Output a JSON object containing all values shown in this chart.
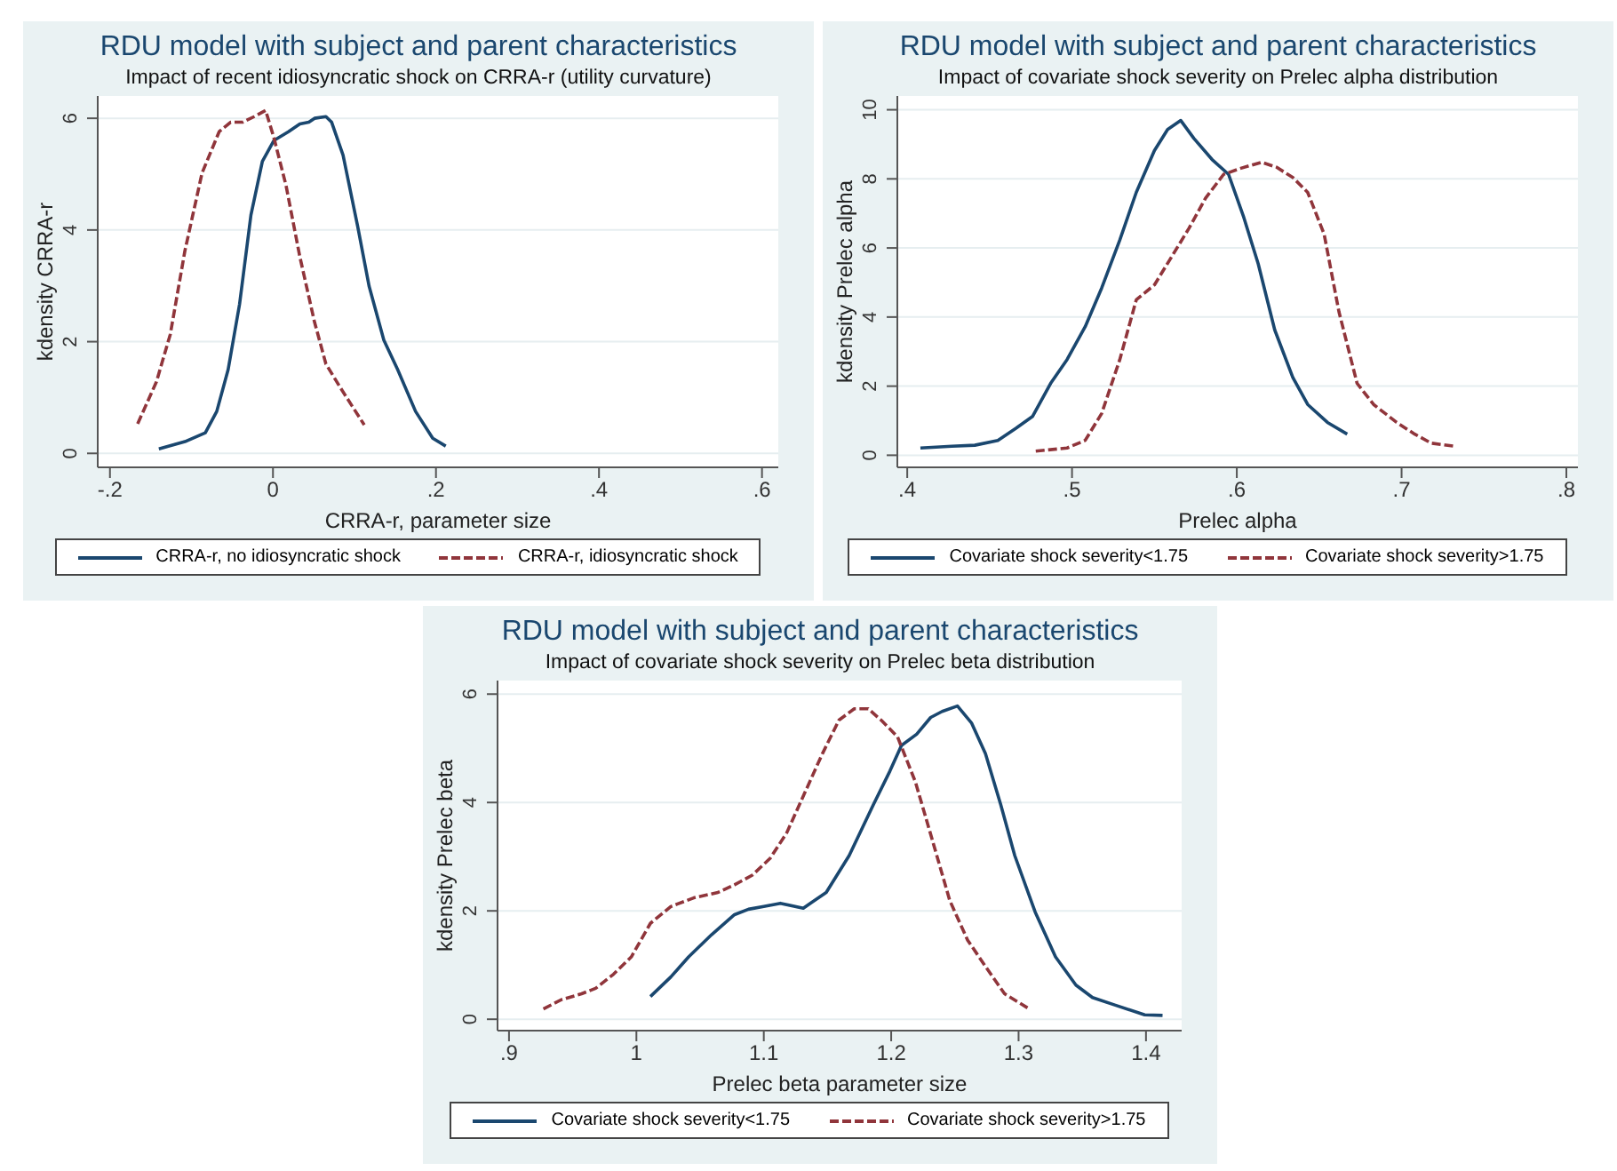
{
  "chart_data": [
    {
      "type": "line",
      "title": "RDU model with subject and parent characteristics",
      "subtitle": "Impact of recent idiosyncratic shock on CRRA-r (utility curvature)",
      "xlabel": "CRRA-r, parameter size",
      "ylabel": "kdensity CRRA-r",
      "xlim": [
        -0.215,
        0.62
      ],
      "xticks": [
        {
          "value": -0.2,
          "label": "-.2"
        },
        0,
        {
          "value": 0.2,
          "label": ".2"
        },
        {
          "value": 0.4,
          "label": ".4"
        },
        {
          "value": 0.6,
          "label": ".6"
        }
      ],
      "ylim": [
        -0.25,
        6.4
      ],
      "yticks": [
        0,
        2,
        4,
        6
      ],
      "grid": "y",
      "legend": "bottom",
      "marker": "none",
      "series": [
        {
          "name": "CRRA-r, no idiosyncratic shock",
          "color": "#1a476f",
          "line_style": "solid",
          "x": [
            -0.14,
            -0.108,
            -0.083,
            -0.069,
            -0.055,
            -0.041,
            -0.027,
            -0.013,
            0.001,
            0.019,
            0.033,
            0.044,
            0.051,
            0.065,
            0.072,
            0.086,
            0.104,
            0.118,
            0.136,
            0.153,
            0.175,
            0.196,
            0.212
          ],
          "values": [
            0.08,
            0.21,
            0.37,
            0.75,
            1.5,
            2.67,
            4.27,
            5.23,
            5.6,
            5.76,
            5.9,
            5.93,
            6.0,
            6.03,
            5.93,
            5.34,
            4.06,
            2.99,
            2.03,
            1.5,
            0.75,
            0.27,
            0.13
          ]
        },
        {
          "name": "CRRA-r, idiosyncratic shock",
          "color": "#90353b",
          "line_style": "dashed",
          "x": [
            -0.166,
            -0.143,
            -0.126,
            -0.108,
            -0.087,
            -0.066,
            -0.052,
            -0.037,
            -0.023,
            -0.009,
            0.001,
            0.016,
            0.033,
            0.051,
            0.065,
            0.083,
            0.097,
            0.112
          ],
          "values": [
            0.53,
            1.28,
            2.13,
            3.63,
            5.02,
            5.76,
            5.93,
            5.93,
            6.03,
            6.14,
            5.66,
            4.8,
            3.52,
            2.35,
            1.6,
            1.17,
            0.85,
            0.51
          ]
        }
      ]
    },
    {
      "type": "line",
      "title": "RDU model with subject and parent characteristics",
      "subtitle": "Impact of covariate shock severity on Prelec alpha distribution",
      "xlabel": "Prelec alpha",
      "ylabel": "kdensity Prelec alpha",
      "xlim": [
        0.394,
        0.807
      ],
      "xticks": [
        {
          "value": 0.4,
          "label": ".4"
        },
        {
          "value": 0.5,
          "label": ".5"
        },
        {
          "value": 0.6,
          "label": ".6"
        },
        {
          "value": 0.7,
          "label": ".7"
        },
        {
          "value": 0.8,
          "label": ".8"
        }
      ],
      "ylim": [
        -0.35,
        10.4
      ],
      "yticks": [
        0,
        2,
        4,
        6,
        8,
        10
      ],
      "grid": "y",
      "legend": "bottom",
      "marker": "none",
      "series": [
        {
          "name": "Covariate shock severity<1.75",
          "color": "#1a476f",
          "line_style": "solid",
          "x": [
            0.408,
            0.427,
            0.441,
            0.455,
            0.466,
            0.476,
            0.487,
            0.497,
            0.508,
            0.518,
            0.529,
            0.539,
            0.55,
            0.558,
            0.566,
            0.574,
            0.585,
            0.595,
            0.604,
            0.613,
            0.623,
            0.634,
            0.643,
            0.655,
            0.667
          ],
          "values": [
            0.21,
            0.26,
            0.29,
            0.43,
            0.78,
            1.12,
            2.08,
            2.77,
            3.72,
            4.84,
            6.23,
            7.61,
            8.82,
            9.43,
            9.69,
            9.17,
            8.56,
            8.13,
            6.92,
            5.54,
            3.63,
            2.25,
            1.47,
            0.95,
            0.61
          ]
        },
        {
          "name": "Covariate shock severity>1.75",
          "color": "#90353b",
          "line_style": "dashed",
          "x": [
            0.478,
            0.497,
            0.508,
            0.518,
            0.529,
            0.539,
            0.55,
            0.56,
            0.571,
            0.581,
            0.592,
            0.602,
            0.615,
            0.624,
            0.634,
            0.643,
            0.653,
            0.662,
            0.673,
            0.683,
            0.697,
            0.708,
            0.718,
            0.732
          ],
          "values": [
            0.12,
            0.21,
            0.43,
            1.21,
            2.77,
            4.5,
            4.93,
            5.71,
            6.57,
            7.44,
            8.13,
            8.3,
            8.48,
            8.34,
            8.04,
            7.61,
            6.4,
            4.15,
            2.08,
            1.47,
            0.95,
            0.61,
            0.35,
            0.26
          ]
        }
      ]
    },
    {
      "type": "line",
      "title": "RDU model with subject and parent characteristics",
      "subtitle": "Impact of covariate shock severity on Prelec beta distribution",
      "xlabel": "Prelec beta parameter size",
      "ylabel": "kdensity Prelec beta",
      "xlim": [
        0.891,
        1.428
      ],
      "xticks": [
        {
          "value": 0.9,
          "label": ".9"
        },
        1,
        1.1,
        1.2,
        1.3,
        1.4
      ],
      "ylim": [
        -0.21,
        6.25
      ],
      "yticks": [
        0,
        2,
        4,
        6
      ],
      "grid": "y",
      "legend": "bottom",
      "marker": "none",
      "series": [
        {
          "name": "Covariate shock severity<1.75",
          "color": "#1a476f",
          "line_style": "solid",
          "x": [
            1.011,
            1.027,
            1.041,
            1.059,
            1.077,
            1.088,
            1.1,
            1.113,
            1.131,
            1.149,
            1.167,
            1.186,
            1.199,
            1.208,
            1.22,
            1.231,
            1.24,
            1.252,
            1.263,
            1.274,
            1.286,
            1.297,
            1.313,
            1.329,
            1.345,
            1.358,
            1.376,
            1.399,
            1.413
          ],
          "values": [
            0.42,
            0.78,
            1.15,
            1.56,
            1.93,
            2.03,
            2.08,
            2.14,
            2.05,
            2.34,
            3.02,
            3.96,
            4.58,
            5.05,
            5.26,
            5.57,
            5.68,
            5.78,
            5.47,
            4.9,
            3.96,
            3.02,
            1.98,
            1.15,
            0.63,
            0.4,
            0.26,
            0.08,
            0.07
          ]
        },
        {
          "name": "Covariate shock severity>1.75",
          "color": "#90353b",
          "line_style": "dashed",
          "x": [
            0.927,
            0.941,
            0.957,
            0.968,
            0.982,
            0.996,
            1.011,
            1.027,
            1.045,
            1.064,
            1.077,
            1.091,
            1.105,
            1.118,
            1.132,
            1.146,
            1.159,
            1.171,
            1.182,
            1.193,
            1.205,
            1.219,
            1.232,
            1.246,
            1.26,
            1.275,
            1.289,
            1.307
          ],
          "values": [
            0.19,
            0.36,
            0.47,
            0.57,
            0.83,
            1.15,
            1.77,
            2.08,
            2.24,
            2.34,
            2.48,
            2.66,
            2.97,
            3.44,
            4.17,
            4.9,
            5.52,
            5.73,
            5.73,
            5.5,
            5.21,
            4.38,
            3.33,
            2.19,
            1.46,
            0.94,
            0.47,
            0.21
          ]
        }
      ]
    }
  ]
}
